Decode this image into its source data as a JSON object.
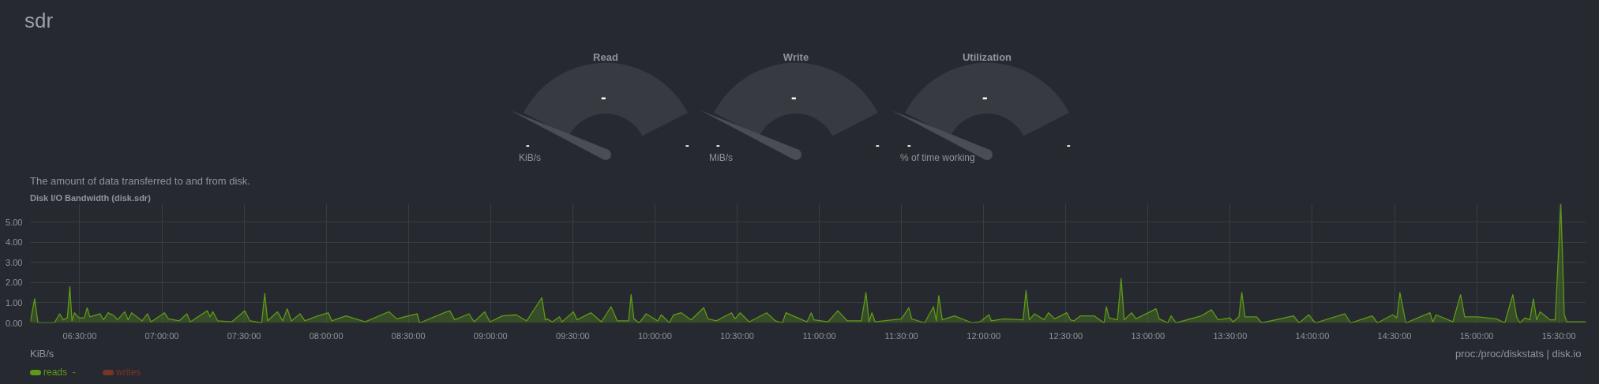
{
  "chart_data": [
    {
      "type": "other",
      "title": "sdr"
    },
    {
      "type": "other",
      "title": "Read",
      "annotations": [
        "-",
        "-",
        "-",
        "KiB/s"
      ]
    },
    {
      "type": "other",
      "title": "Write",
      "annotations": [
        "-",
        "-",
        "-",
        "MiB/s"
      ]
    },
    {
      "type": "other",
      "title": "Utilization",
      "annotations": [
        "-",
        "-",
        "-",
        "% of time working"
      ]
    },
    {
      "type": "area",
      "title": "Disk I/O Bandwidth (disk.sdr)",
      "subtitle": "The amount of data transferred to and from disk.",
      "annotations": [
        "-",
        "proc:/proc/diskstats | disk.io",
        "KiB/s"
      ],
      "xlim": [
        6.2,
        15.665
      ],
      "ylim": [
        0,
        5.9
      ],
      "xticks": [
        {
          "value": 6.5,
          "label": "06:30:00"
        },
        {
          "value": 7,
          "label": "07:00:00"
        },
        {
          "value": 7.5,
          "label": "07:30:00"
        },
        {
          "value": 8,
          "label": "08:00:00"
        },
        {
          "value": 8.5,
          "label": "08:30:00"
        },
        {
          "value": 9,
          "label": "09:00:00"
        },
        {
          "value": 9.5,
          "label": "09:30:00"
        },
        {
          "value": 10,
          "label": "10:00:00"
        },
        {
          "value": 10.5,
          "label": "10:30:00"
        },
        {
          "value": 11,
          "label": "11:00:00"
        },
        {
          "value": 11.5,
          "label": "11:30:00"
        },
        {
          "value": 12,
          "label": "12:00:00"
        },
        {
          "value": 12.5,
          "label": "12:30:00"
        },
        {
          "value": 13,
          "label": "13:00:00"
        },
        {
          "value": 13.5,
          "label": "13:30:00"
        },
        {
          "value": 14,
          "label": "14:00:00"
        },
        {
          "value": 14.5,
          "label": "14:30:00"
        },
        {
          "value": 15,
          "label": "15:00:00"
        },
        {
          "value": 15.5,
          "label": "15:30:00"
        }
      ],
      "yticks": [
        {
          "value": 0,
          "label": "0.00"
        },
        {
          "value": 1,
          "label": "1.00"
        },
        {
          "value": 2,
          "label": "2.00"
        },
        {
          "value": 3,
          "label": "3.00"
        },
        {
          "value": 4,
          "label": "4.00"
        },
        {
          "value": 5,
          "label": "5.00"
        }
      ],
      "grid": true,
      "legend": "bottom left",
      "series": [
        {
          "name": "reads",
          "color": "#5f9a16",
          "x": [
            6.2,
            6.226,
            6.246,
            6.346,
            6.378,
            6.4,
            6.425,
            6.44,
            6.453,
            6.468,
            6.496,
            6.528,
            6.545,
            6.562,
            6.624,
            6.645,
            6.673,
            6.71,
            6.73,
            6.774,
            6.795,
            6.816,
            6.88,
            6.912,
            6.934,
            7.015,
            7.04,
            7.105,
            7.152,
            7.173,
            7.276,
            7.293,
            7.31,
            7.34,
            7.425,
            7.504,
            7.536,
            7.607,
            7.626,
            7.643,
            7.703,
            7.735,
            7.763,
            7.788,
            7.841,
            7.87,
            7.949,
            8.013,
            8.034,
            8.12,
            8.237,
            8.382,
            8.43,
            8.553,
            8.568,
            8.718,
            8.752,
            8.782,
            8.868,
            8.9,
            8.964,
            8.996,
            9.071,
            9.156,
            9.22,
            9.312,
            9.333,
            9.344,
            9.376,
            9.419,
            9.434,
            9.504,
            9.526,
            9.611,
            9.675,
            9.733,
            9.771,
            9.84,
            9.855,
            9.872,
            9.904,
            9.947,
            10.017,
            10.039,
            10.088,
            10.113,
            10.16,
            10.22,
            10.297,
            10.323,
            10.374,
            10.466,
            10.487,
            10.519,
            10.573,
            10.68,
            10.733,
            10.776,
            10.797,
            10.925,
            10.951,
            10.968,
            11.053,
            11.113,
            11.171,
            11.256,
            11.284,
            11.303,
            11.32,
            11.34,
            11.5,
            11.545,
            11.562,
            11.641,
            11.695,
            11.712,
            11.727,
            11.748,
            11.823,
            11.93,
            11.977,
            12.032,
            12.047,
            12.122,
            12.24,
            12.258,
            12.278,
            12.31,
            12.368,
            12.395,
            12.432,
            12.507,
            12.528,
            12.549,
            12.59,
            12.672,
            12.733,
            12.747,
            12.763,
            12.814,
            12.837,
            12.855,
            12.9,
            12.927,
            13.049,
            13.069,
            13.12,
            13.141,
            13.171,
            13.324,
            13.386,
            13.427,
            13.498,
            13.518,
            13.553,
            13.571,
            13.59,
            13.661,
            13.692,
            13.886,
            13.92,
            13.978,
            14.018,
            14.198,
            14.233,
            14.365,
            14.396,
            14.488,
            14.514,
            14.533,
            14.569,
            14.716,
            14.733,
            14.753,
            14.855,
            14.902,
            14.927,
            15.008,
            15.12,
            15.171,
            15.22,
            15.243,
            15.263,
            15.294,
            15.324,
            15.345,
            15.365,
            15.386,
            15.447,
            15.478,
            15.512,
            15.533,
            15.549,
            15.665
          ],
          "values": [
            0.05,
            1.2,
            0.0,
            0.0,
            0.45,
            0.15,
            0.25,
            1.8,
            0.1,
            0.5,
            0.25,
            0.25,
            0.75,
            0.3,
            0.45,
            0.15,
            0.5,
            0.35,
            0.15,
            0.55,
            0.15,
            0.5,
            0.1,
            0.45,
            0.05,
            0.5,
            0.2,
            0.1,
            0.45,
            0.05,
            0.6,
            0.3,
            0.55,
            0.1,
            0.05,
            0.6,
            0.1,
            0.0,
            1.45,
            0.1,
            0.55,
            0.1,
            0.7,
            0.1,
            0.45,
            0.1,
            0.35,
            0.5,
            0.1,
            0.35,
            0.05,
            0.55,
            0.2,
            0.45,
            0.0,
            0.5,
            0.6,
            0.15,
            0.45,
            0.05,
            0.55,
            0.05,
            0.35,
            0.4,
            0.1,
            1.25,
            0.15,
            0.2,
            0.05,
            0.3,
            0.05,
            0.55,
            0.15,
            0.5,
            0.05,
            0.8,
            0.1,
            0.1,
            1.4,
            0.2,
            0.0,
            0.45,
            0.1,
            0.4,
            0.0,
            0.4,
            0.5,
            0.15,
            0.75,
            0.2,
            0.1,
            0.5,
            0.2,
            0.5,
            0.05,
            0.5,
            0.1,
            0.0,
            0.5,
            0.05,
            0.5,
            0.15,
            0.05,
            0.6,
            0.1,
            0.1,
            1.5,
            0.05,
            0.5,
            0.05,
            0.2,
            0.75,
            0.2,
            0.0,
            0.8,
            0.1,
            1.35,
            0.15,
            0.35,
            0.0,
            0.05,
            0.4,
            0.1,
            0.2,
            0.15,
            1.6,
            0.15,
            0.45,
            0.15,
            0.5,
            0.2,
            0.5,
            0.15,
            0.1,
            0.35,
            0.35,
            0.0,
            0.8,
            0.25,
            0.15,
            2.2,
            0.15,
            0.5,
            0.2,
            0.7,
            0.2,
            0.0,
            0.35,
            0.0,
            0.35,
            0.65,
            0.15,
            0.25,
            0.05,
            0.3,
            1.5,
            0.3,
            0.3,
            0.0,
            0.35,
            0.0,
            0.4,
            0.0,
            0.45,
            0.0,
            0.35,
            0.0,
            0.4,
            0.25,
            1.5,
            0.0,
            0.5,
            0.05,
            0.4,
            0.05,
            1.4,
            0.3,
            0.3,
            0.2,
            0.0,
            1.4,
            0.3,
            0.0,
            0.25,
            0.15,
            1.2,
            0.15,
            0.55,
            0.15,
            0.15,
            5.88,
            0.4,
            0.05,
            0.05
          ]
        },
        {
          "name": "writes",
          "color": "#7a3328"
        }
      ]
    }
  ]
}
